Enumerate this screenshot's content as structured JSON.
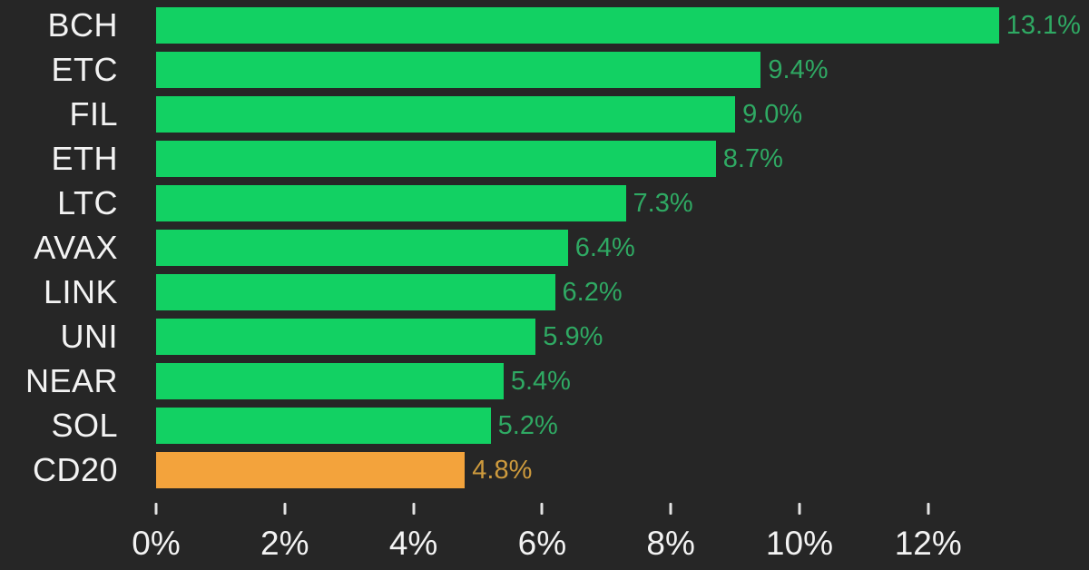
{
  "colors": {
    "background": "#262626",
    "bar_green": "#12d163",
    "bar_orange": "#f3a33c",
    "value_text_green": "#2fa963",
    "value_text_orange": "#cd9a3d",
    "label_text": "#f3f3f3",
    "tick_mark": "#e3e3e3"
  },
  "chart_data": {
    "type": "bar",
    "orientation": "horizontal",
    "title": "",
    "xlabel": "",
    "ylabel": "",
    "xlim": [
      0,
      14.5
    ],
    "grid": false,
    "legend": "none",
    "categories": [
      "BCH",
      "ETC",
      "FIL",
      "ETH",
      "LTC",
      "AVAX",
      "LINK",
      "UNI",
      "NEAR",
      "SOL",
      "CD20"
    ],
    "values": [
      13.1,
      9.4,
      9.0,
      8.7,
      7.3,
      6.4,
      6.2,
      5.9,
      5.4,
      5.2,
      4.8
    ],
    "value_labels": [
      "13.1%",
      "9.4%",
      "9.0%",
      "8.7%",
      "7.3%",
      "6.4%",
      "6.2%",
      "5.9%",
      "5.4%",
      "5.2%",
      "4.8%"
    ],
    "highlight_category": "CD20",
    "items": [
      {
        "label": "BCH",
        "value": 13.1,
        "value_label": "13.1%",
        "highlight": false
      },
      {
        "label": "ETC",
        "value": 9.4,
        "value_label": "9.4%",
        "highlight": false
      },
      {
        "label": "FIL",
        "value": 9.0,
        "value_label": "9.0%",
        "highlight": false
      },
      {
        "label": "ETH",
        "value": 8.7,
        "value_label": "8.7%",
        "highlight": false
      },
      {
        "label": "LTC",
        "value": 7.3,
        "value_label": "7.3%",
        "highlight": false
      },
      {
        "label": "AVAX",
        "value": 6.4,
        "value_label": "6.4%",
        "highlight": false
      },
      {
        "label": "LINK",
        "value": 6.2,
        "value_label": "6.2%",
        "highlight": false
      },
      {
        "label": "UNI",
        "value": 5.9,
        "value_label": "5.9%",
        "highlight": false
      },
      {
        "label": "NEAR",
        "value": 5.4,
        "value_label": "5.4%",
        "highlight": false
      },
      {
        "label": "SOL",
        "value": 5.2,
        "value_label": "5.2%",
        "highlight": false
      },
      {
        "label": "CD20",
        "value": 4.8,
        "value_label": "4.8%",
        "highlight": true
      }
    ],
    "x_axis": {
      "ticks": [
        0,
        2,
        4,
        6,
        8,
        10,
        12
      ],
      "tick_labels": [
        "0%",
        "2%",
        "4%",
        "6%",
        "8%",
        "10%",
        "12%"
      ]
    }
  }
}
